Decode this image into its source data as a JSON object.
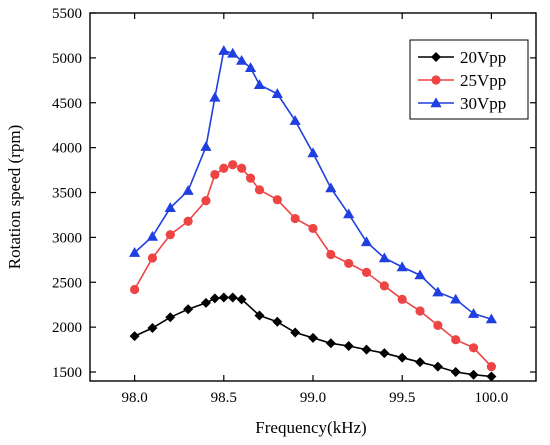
{
  "chart_data": {
    "type": "line",
    "xlabel": "Frequency(kHz)",
    "ylabel": "Rotation speed (rpm)",
    "xlim": [
      97.75,
      100.25
    ],
    "ylim": [
      1400,
      5500
    ],
    "x_ticks": [
      98.0,
      98.5,
      99.0,
      99.5,
      100.0
    ],
    "x_tick_labels": [
      "98.0",
      "98.5",
      "99.0",
      "99.5",
      "100.0"
    ],
    "y_ticks": [
      1500,
      2000,
      2500,
      3000,
      3500,
      4000,
      4500,
      5000,
      5500
    ],
    "y_tick_labels": [
      "1500",
      "2000",
      "2500",
      "3000",
      "3500",
      "4000",
      "4500",
      "5000",
      "5500"
    ],
    "grid": false,
    "legend_position": "top-right",
    "series": [
      {
        "name": "20Vpp",
        "color": "#000000",
        "marker": "diamond",
        "x": [
          98.0,
          98.1,
          98.2,
          98.3,
          98.4,
          98.45,
          98.5,
          98.55,
          98.6,
          98.7,
          98.8,
          98.9,
          99.0,
          99.1,
          99.2,
          99.3,
          99.4,
          99.5,
          99.6,
          99.7,
          99.8,
          99.9,
          100.0
        ],
        "values": [
          1900,
          1990,
          2110,
          2200,
          2270,
          2320,
          2330,
          2330,
          2310,
          2130,
          2060,
          1940,
          1880,
          1820,
          1790,
          1750,
          1710,
          1660,
          1610,
          1560,
          1500,
          1470,
          1450
        ]
      },
      {
        "name": "25Vpp",
        "color": "#ee4444",
        "marker": "circle",
        "x": [
          98.0,
          98.1,
          98.2,
          98.3,
          98.4,
          98.45,
          98.5,
          98.55,
          98.6,
          98.65,
          98.7,
          98.8,
          98.9,
          99.0,
          99.1,
          99.2,
          99.3,
          99.4,
          99.5,
          99.6,
          99.7,
          99.8,
          99.9,
          100.0
        ],
        "values": [
          2420,
          2770,
          3030,
          3180,
          3410,
          3700,
          3770,
          3810,
          3770,
          3660,
          3530,
          3420,
          3210,
          3100,
          2810,
          2710,
          2610,
          2460,
          2310,
          2180,
          2020,
          1860,
          1770,
          1560
        ]
      },
      {
        "name": "30Vpp",
        "color": "#1f3fe0",
        "marker": "triangle",
        "x": [
          98.0,
          98.1,
          98.2,
          98.3,
          98.4,
          98.45,
          98.5,
          98.55,
          98.6,
          98.65,
          98.7,
          98.8,
          98.9,
          99.0,
          99.1,
          99.2,
          99.3,
          99.4,
          99.5,
          99.6,
          99.7,
          99.8,
          99.9,
          100.0
        ],
        "values": [
          2830,
          3010,
          3330,
          3520,
          4010,
          4560,
          5080,
          5050,
          4970,
          4890,
          4700,
          4600,
          4300,
          3940,
          3550,
          3260,
          2950,
          2770,
          2670,
          2580,
          2390,
          2310,
          2150,
          2090
        ]
      }
    ]
  }
}
